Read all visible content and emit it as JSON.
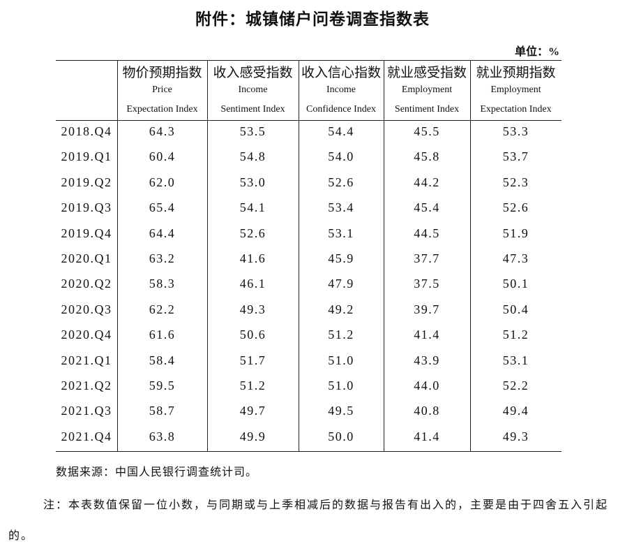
{
  "title": "附件：城镇储户问卷调查指数表",
  "unit": "单位：%",
  "table": {
    "columns": [
      {
        "cn": "物价预期指数",
        "en": [
          "Price",
          "Expectation Index"
        ]
      },
      {
        "cn": "收入感受指数",
        "en": [
          "Income",
          "Sentiment Index"
        ]
      },
      {
        "cn": "收入信心指数",
        "en": [
          "Income",
          "Confidence Index"
        ]
      },
      {
        "cn": "就业感受指数",
        "en": [
          "Employment",
          "Sentiment Index"
        ]
      },
      {
        "cn": "就业预期指数",
        "en": [
          "Employment",
          "Expectation Index"
        ]
      }
    ],
    "rows": [
      [
        "2018.Q4",
        "64.3",
        "53.5",
        "54.4",
        "45.5",
        "53.3"
      ],
      [
        "2019.Q1",
        "60.4",
        "54.8",
        "54.0",
        "45.8",
        "53.7"
      ],
      [
        "2019.Q2",
        "62.0",
        "53.0",
        "52.6",
        "44.2",
        "52.3"
      ],
      [
        "2019.Q3",
        "65.4",
        "54.1",
        "53.4",
        "45.4",
        "52.6"
      ],
      [
        "2019.Q4",
        "64.4",
        "52.6",
        "53.1",
        "44.5",
        "51.9"
      ],
      [
        "2020.Q1",
        "63.2",
        "41.6",
        "45.9",
        "37.7",
        "47.3"
      ],
      [
        "2020.Q2",
        "58.3",
        "46.1",
        "47.9",
        "37.5",
        "50.1"
      ],
      [
        "2020.Q3",
        "62.2",
        "49.3",
        "49.2",
        "39.7",
        "50.4"
      ],
      [
        "2020.Q4",
        "61.6",
        "50.6",
        "51.2",
        "41.4",
        "51.2"
      ],
      [
        "2021.Q1",
        "58.4",
        "51.7",
        "51.0",
        "43.9",
        "53.1"
      ],
      [
        "2021.Q2",
        "59.5",
        "51.2",
        "51.0",
        "44.0",
        "52.2"
      ],
      [
        "2021.Q3",
        "58.7",
        "49.7",
        "49.5",
        "40.8",
        "49.4"
      ],
      [
        "2021.Q4",
        "63.8",
        "49.9",
        "50.0",
        "41.4",
        "49.3"
      ]
    ]
  },
  "source": "数据来源：中国人民银行调查统计司。",
  "note": "注：本表数值保留一位小数，与同期或与上季相减后的数据与报告有出入的，主要是由于四舍五入引起的。"
}
